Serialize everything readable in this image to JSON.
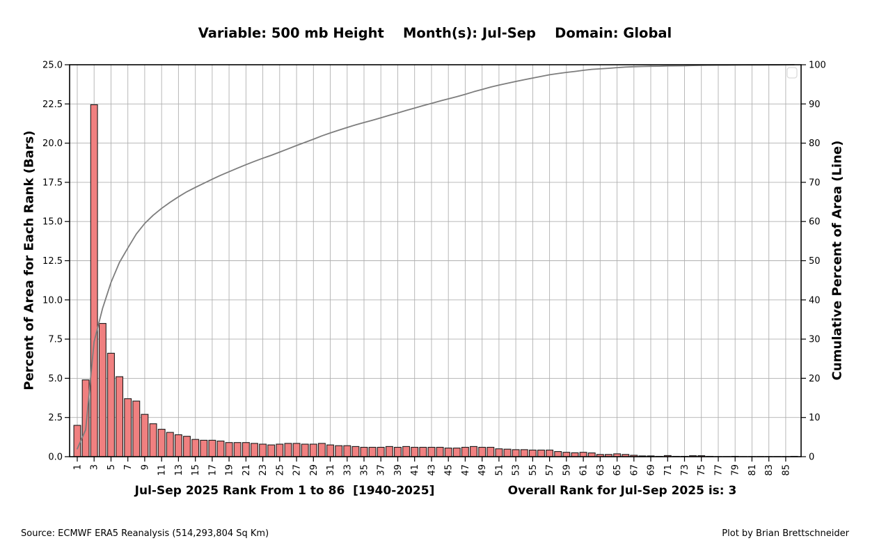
{
  "footer": {
    "source": "Source: ECMWF ERA5 Reanalysis (514,293,804 Sq Km)",
    "credit": "Plot by Brian Brettschneider"
  },
  "chart_data": {
    "type": "bar",
    "title": "Variable: 500 mb Height    Month(s): Jul-Sep    Domain: Global",
    "xlabel": "Jul-Sep 2025 Rank From 1 to 86  [1940-2025]",
    "xlabel_note": "Overall Rank for Jul-Sep 2025 is: 3",
    "ylabel_left": "Percent of Area for Each Rank (Bars)",
    "ylabel_right": "Cumulative Percent of Area (Line)",
    "x": [
      1,
      2,
      3,
      4,
      5,
      6,
      7,
      8,
      9,
      10,
      11,
      12,
      13,
      14,
      15,
      16,
      17,
      18,
      19,
      20,
      21,
      22,
      23,
      24,
      25,
      26,
      27,
      28,
      29,
      30,
      31,
      32,
      33,
      34,
      35,
      36,
      37,
      38,
      39,
      40,
      41,
      42,
      43,
      44,
      45,
      46,
      47,
      48,
      49,
      50,
      51,
      52,
      53,
      54,
      55,
      56,
      57,
      58,
      59,
      60,
      61,
      62,
      63,
      64,
      65,
      66,
      67,
      68,
      69,
      70,
      71,
      72,
      73,
      74,
      75,
      76,
      77,
      78,
      79,
      80,
      81,
      82,
      83,
      84,
      85,
      86
    ],
    "bar_series": {
      "name": "Percent of Area for Each Rank",
      "values": [
        2.0,
        4.9,
        22.45,
        8.5,
        6.6,
        5.1,
        3.7,
        3.55,
        2.7,
        2.1,
        1.75,
        1.55,
        1.4,
        1.3,
        1.1,
        1.05,
        1.05,
        1.0,
        0.9,
        0.9,
        0.9,
        0.85,
        0.8,
        0.75,
        0.8,
        0.85,
        0.85,
        0.8,
        0.8,
        0.85,
        0.75,
        0.7,
        0.7,
        0.65,
        0.6,
        0.6,
        0.6,
        0.65,
        0.6,
        0.65,
        0.6,
        0.6,
        0.6,
        0.6,
        0.55,
        0.55,
        0.6,
        0.65,
        0.6,
        0.6,
        0.5,
        0.48,
        0.45,
        0.45,
        0.42,
        0.42,
        0.42,
        0.33,
        0.28,
        0.25,
        0.28,
        0.24,
        0.14,
        0.14,
        0.18,
        0.14,
        0.09,
        0.05,
        0.05,
        0.02,
        0.07,
        0.02,
        0.02,
        0.06,
        0.06,
        0.02,
        0.01,
        0.01,
        0.02,
        0.01,
        0.01,
        0.01,
        0.01,
        0.01,
        0.01,
        0.02
      ]
    },
    "line_series": {
      "name": "Cumulative Percent of Area",
      "values": [
        2.0,
        6.9,
        29.35,
        37.85,
        44.45,
        49.55,
        53.25,
        56.8,
        59.5,
        61.6,
        63.35,
        64.9,
        66.3,
        67.6,
        68.7,
        69.75,
        70.8,
        71.8,
        72.7,
        73.6,
        74.5,
        75.35,
        76.15,
        76.9,
        77.7,
        78.55,
        79.4,
        80.2,
        81.0,
        81.85,
        82.6,
        83.3,
        84.0,
        84.65,
        85.25,
        85.85,
        86.45,
        87.1,
        87.7,
        88.35,
        88.95,
        89.55,
        90.15,
        90.75,
        91.3,
        91.85,
        92.45,
        93.1,
        93.7,
        94.3,
        94.8,
        95.28,
        95.73,
        96.18,
        96.6,
        97.02,
        97.44,
        97.77,
        98.05,
        98.3,
        98.58,
        98.82,
        98.96,
        99.1,
        99.28,
        99.42,
        99.51,
        99.56,
        99.61,
        99.63,
        99.7,
        99.72,
        99.74,
        99.8,
        99.86,
        99.88,
        99.89,
        99.9,
        99.92,
        99.93,
        99.94,
        99.95,
        99.96,
        99.97,
        99.98,
        100.0
      ]
    },
    "axis_left": {
      "min": 0,
      "max": 25,
      "step": 2.5,
      "decimals": 1
    },
    "axis_right": {
      "min": 0,
      "max": 100,
      "step": 10,
      "decimals": 0
    },
    "axis_x": {
      "min": 1,
      "max": 86,
      "tick_every": 2,
      "tick_rotation_deg": 90
    },
    "grid": true,
    "legend": {
      "visible": true,
      "empty": true,
      "position": "upper right"
    },
    "colors": {
      "bar_fill": "#f08080",
      "bar_edge": "#1a1a1a",
      "line": "#7d7d7d",
      "grid": "#b0b0b0",
      "spine": "#000000",
      "legend_border": "#d9d9d9"
    }
  }
}
